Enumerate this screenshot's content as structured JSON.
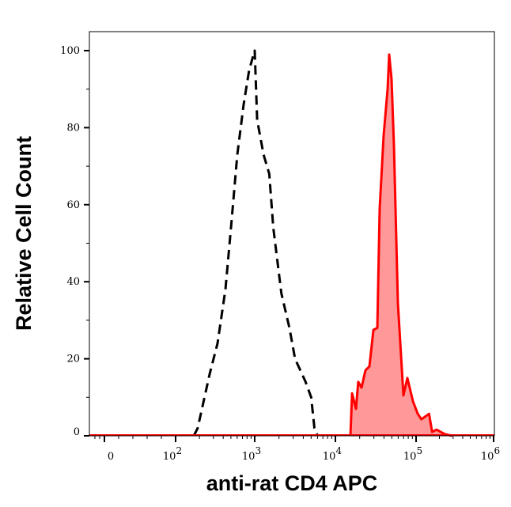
{
  "chart_data": {
    "type": "area",
    "title": "",
    "xlabel": "anti-rat CD4 APC",
    "ylabel": "Relative Cell Count",
    "x_scale": "biexponential",
    "xlim": [
      -50,
      1000000
    ],
    "ylim": [
      0,
      100
    ],
    "grid": false,
    "legend": "none",
    "x_ticks": [
      {
        "value": 0,
        "base": "0",
        "exp": ""
      },
      {
        "value": 100,
        "base": "10",
        "exp": "2"
      },
      {
        "value": 1000,
        "base": "10",
        "exp": "3"
      },
      {
        "value": 10000,
        "base": "10",
        "exp": "4"
      },
      {
        "value": 100000,
        "base": "10",
        "exp": "5"
      },
      {
        "value": 1000000,
        "base": "10",
        "exp": "6"
      }
    ],
    "y_ticks": [
      "0",
      "20",
      "40",
      "60",
      "80",
      "100"
    ],
    "series": [
      {
        "style": "dashed",
        "color": "#000000",
        "fill": "none",
        "x": [
          170,
          190,
          269,
          339,
          427,
          501,
          603,
          724,
          851,
          1000,
          1072,
          1288,
          1514,
          1698,
          2138,
          2692,
          3162,
          4266,
          5012,
          5495,
          6026
        ],
        "y": [
          0,
          2,
          16,
          24,
          38,
          54,
          73,
          86,
          95,
          100,
          82,
          73,
          68,
          54,
          37,
          28,
          20,
          14,
          10,
          2,
          0
        ]
      },
      {
        "style": "solid",
        "color": "#ff0000",
        "fill": "#ff9999",
        "x": [
          15350,
          16100,
          18000,
          19200,
          21100,
          23600,
          26400,
          29600,
          33100,
          35400,
          39600,
          44400,
          46400,
          49700,
          53100,
          59500,
          69700,
          78000,
          91400,
          105000,
          117000,
          147000,
          161000,
          184000,
          231000,
          289000
        ],
        "y": [
          0,
          11,
          7,
          14,
          12.5,
          17,
          18,
          27.5,
          28,
          59,
          78,
          90,
          99,
          92.6,
          75.5,
          34.5,
          10.5,
          15,
          9,
          5.7,
          4.3,
          5.7,
          1,
          1.6,
          0.5,
          0
        ]
      }
    ]
  }
}
